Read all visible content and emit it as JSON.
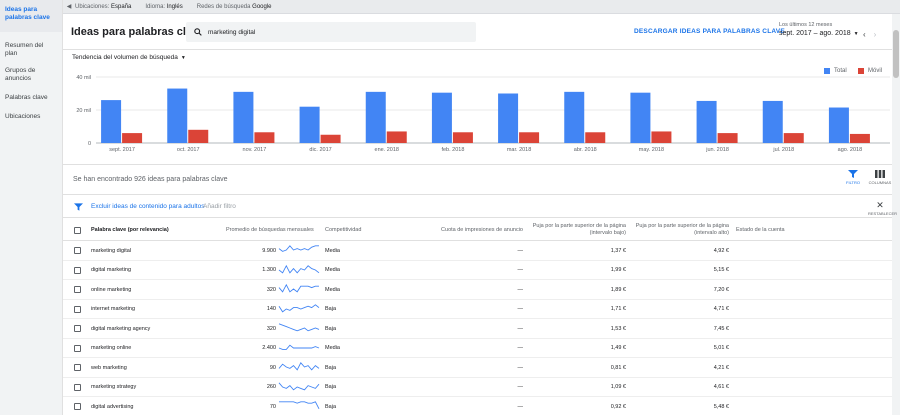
{
  "sidebar": {
    "items": [
      {
        "label": "Ideas para palabras clave",
        "active": true
      },
      {
        "label": "Resumen del plan"
      },
      {
        "label": "Grupos de anuncios"
      },
      {
        "label": "Palabras clave"
      },
      {
        "label": "Ubicaciones"
      }
    ]
  },
  "topbar": {
    "location_label": "Ubicaciones:",
    "location_value": "España",
    "language_label": "Idioma:",
    "language_value": "Inglés",
    "network_label": "Redes de búsqueda",
    "network_value": "Google"
  },
  "header": {
    "title": "Ideas para palabras clave",
    "search_value": "marketing digital",
    "download_label": "DESCARGAR IDEAS PARA PALABRAS CLAVE",
    "date_label": "Los últimos 12 meses",
    "date_value": "sept. 2017 – ago. 2018"
  },
  "trend_select": "Tendencia del volumen de búsqueda",
  "colors": {
    "total": "#4285f4",
    "mobile": "#db4437",
    "accent": "#1a73e8"
  },
  "chart_data": {
    "type": "bar",
    "categories": [
      "sept. 2017",
      "oct. 2017",
      "nov. 2017",
      "dic. 2017",
      "ene. 2018",
      "feb. 2018",
      "mar. 2018",
      "abr. 2018",
      "may. 2018",
      "jun. 2018",
      "jul. 2018",
      "ago. 2018"
    ],
    "series": [
      {
        "name": "Total",
        "values": [
          26000,
          33000,
          31000,
          22000,
          31000,
          30500,
          30000,
          31000,
          30500,
          25500,
          25500,
          21500
        ]
      },
      {
        "name": "Móvil",
        "values": [
          6000,
          8000,
          6500,
          5000,
          7000,
          6500,
          6500,
          6500,
          7000,
          6000,
          6000,
          5500
        ]
      }
    ],
    "yticks": [
      "0",
      "20 mil",
      "40 mil"
    ],
    "ylim": [
      0,
      40000
    ],
    "grid": true,
    "legend": "top-right"
  },
  "results": {
    "found_text": "Se han encontrado 926 ideas para palabras clave",
    "filter_label": "FILTRO",
    "columns_label": "COLUMNAS",
    "exclude_adult": "Excluir ideas de contenido para adultos",
    "add_filter": "Añadir filtro",
    "reset_label": "RESTABLECER"
  },
  "table": {
    "headers": {
      "keyword": "Palabra clave (por relevancia)",
      "avg": "Promedio de búsquedas mensuales",
      "competition": "Competitividad",
      "impression_share": "Cuota de impresiones de anuncio",
      "bid_low": "Puja por la parte superior de la página (intervalo bajo)",
      "bid_high": "Puja por la parte superior de la página (intervalo alto)",
      "account_status": "Estado de la cuenta"
    },
    "rows": [
      {
        "keyword": "marketing digital",
        "avg": "9.900",
        "competition": "Media",
        "share": "—",
        "low": "1,37 €",
        "high": "4,92 €",
        "spark": [
          6,
          4,
          5,
          8,
          5,
          6,
          5,
          6,
          5,
          7,
          8,
          8
        ]
      },
      {
        "keyword": "digital marketing",
        "avg": "1.300",
        "competition": "Media",
        "share": "—",
        "low": "1,99 €",
        "high": "5,15 €",
        "spark": [
          5,
          3,
          8,
          3,
          6,
          3,
          6,
          5,
          8,
          6,
          5,
          3
        ]
      },
      {
        "keyword": "online marketing",
        "avg": "320",
        "competition": "Media",
        "share": "—",
        "low": "1,89 €",
        "high": "7,20 €",
        "spark": [
          6,
          3,
          8,
          3,
          5,
          3,
          7,
          7,
          7,
          6,
          7,
          7
        ]
      },
      {
        "keyword": "internet marketing",
        "avg": "140",
        "competition": "Baja",
        "share": "—",
        "low": "1,71 €",
        "high": "4,71 €",
        "spark": [
          7,
          3,
          5,
          4,
          6,
          6,
          5,
          6,
          7,
          6,
          8,
          6
        ]
      },
      {
        "keyword": "digital marketing agency",
        "avg": "320",
        "competition": "Baja",
        "share": "—",
        "low": "1,53 €",
        "high": "7,45 €",
        "spark": [
          8,
          7,
          6,
          5,
          4,
          3,
          4,
          5,
          3,
          4,
          5,
          4
        ]
      },
      {
        "keyword": "marketing online",
        "avg": "2.400",
        "competition": "Media",
        "share": "—",
        "low": "1,49 €",
        "high": "5,01 €",
        "spark": [
          5,
          4,
          4,
          7,
          5,
          5,
          5,
          5,
          5,
          5,
          6,
          5
        ]
      },
      {
        "keyword": "web marketing",
        "avg": "90",
        "competition": "Baja",
        "share": "—",
        "low": "0,81 €",
        "high": "4,21 €",
        "spark": [
          4,
          7,
          5,
          4,
          6,
          3,
          8,
          5,
          6,
          3,
          6,
          4
        ]
      },
      {
        "keyword": "marketing strategy",
        "avg": "260",
        "competition": "Baja",
        "share": "—",
        "low": "1,09 €",
        "high": "4,61 €",
        "spark": [
          8,
          5,
          4,
          6,
          3,
          5,
          4,
          3,
          6,
          5,
          4,
          7
        ]
      },
      {
        "keyword": "digital advertising",
        "avg": "70",
        "competition": "Baja",
        "share": "—",
        "low": "0,92 €",
        "high": "5,48 €",
        "spark": [
          8,
          8,
          8,
          8,
          8,
          7,
          8,
          8,
          7,
          7,
          8,
          3
        ]
      }
    ]
  }
}
